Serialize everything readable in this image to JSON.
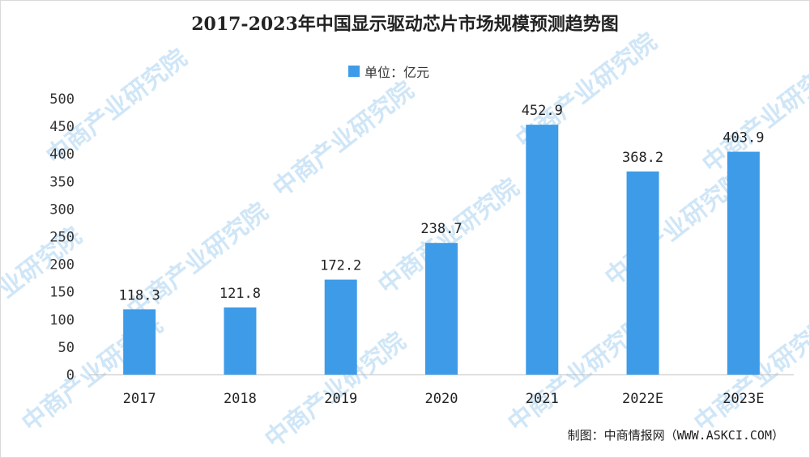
{
  "chart_data": {
    "type": "bar",
    "title": "2017-2023年中国显示驱动芯片市场规模预测趋势图",
    "legend": "单位：亿元",
    "categories": [
      "2017",
      "2018",
      "2019",
      "2020",
      "2021",
      "2022E",
      "2023E"
    ],
    "values": [
      118.3,
      121.8,
      172.2,
      238.7,
      452.9,
      368.2,
      403.9
    ],
    "value_labels": [
      "118.3",
      "121.8",
      "172.2",
      "238.7",
      "452.9",
      "368.2",
      "403.9"
    ],
    "ylim": [
      0,
      500
    ],
    "yticks": [
      "0",
      "50",
      "100",
      "150",
      "200",
      "250",
      "300",
      "350",
      "400",
      "450",
      "500"
    ],
    "xlabel": "",
    "ylabel": "",
    "grid": false,
    "legend_position": "top-center",
    "bar_color": "#3e9be8"
  },
  "source": "制图：中商情报网（WWW.ASKCI.COM）",
  "watermark": "中商产业研究院"
}
